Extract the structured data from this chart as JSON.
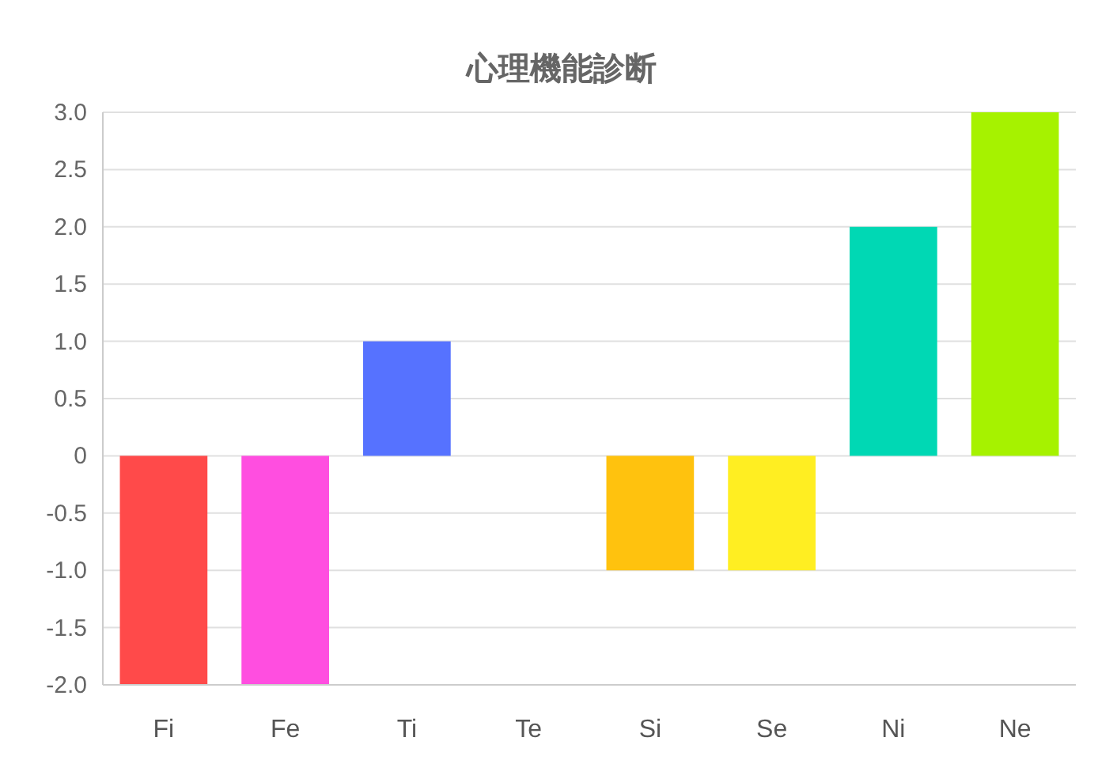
{
  "chart_data": {
    "type": "bar",
    "title": "心理機能診断",
    "categories": [
      "Fi",
      "Fe",
      "Ti",
      "Te",
      "Si",
      "Se",
      "Ni",
      "Ne"
    ],
    "values": [
      -2,
      -2,
      1,
      0,
      -1,
      -1,
      2,
      3
    ],
    "colors": [
      "#ff4a4a",
      "#ff4ee0",
      "#5672ff",
      "#3fa9f5",
      "#ffc20e",
      "#ffee22",
      "#00d8b4",
      "#a6f200"
    ],
    "ylim": [
      -2,
      3
    ],
    "yticks": [
      {
        "value": -2,
        "label": "-2.0"
      },
      {
        "value": -1.5,
        "label": "-1.5"
      },
      {
        "value": -1,
        "label": "-1.0"
      },
      {
        "value": -0.5,
        "label": "-0.5"
      },
      0,
      {
        "value": 0.5,
        "label": "0.5"
      },
      {
        "value": 1,
        "label": "1.0"
      },
      {
        "value": 1.5,
        "label": "1.5"
      },
      {
        "value": 2,
        "label": "2.0"
      },
      {
        "value": 2.5,
        "label": "2.5"
      },
      {
        "value": 3,
        "label": "3.0"
      }
    ],
    "grid": "y"
  }
}
